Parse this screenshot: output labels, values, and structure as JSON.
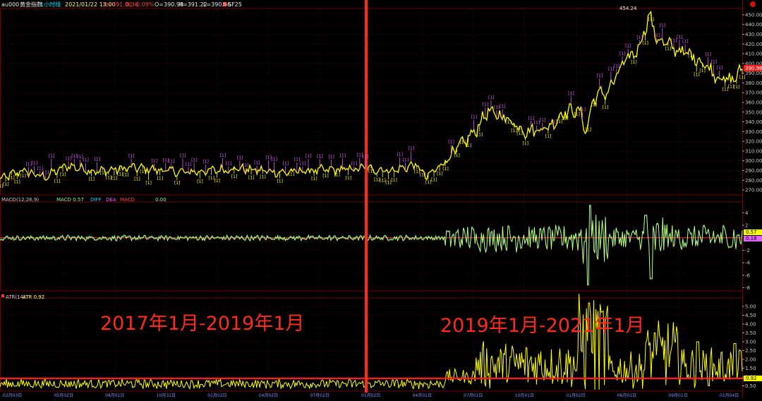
{
  "header": {
    "symbol": "au000",
    "name": "黄金指数",
    "period": "1小时线",
    "datetime": "2021/01/22 13:00",
    "open": "O=391.00",
    "change": "0.36",
    "change_pct": "0.09%",
    "close": "O=390.98",
    "high": "H=391.22",
    "low": "L=390.66",
    "indicator": "SF25"
  },
  "macd_header": {
    "label": "MACD(12,26,9)",
    "items": [
      "MACD 0.57",
      "DIFF",
      "DEA",
      "MACD",
      "0.00"
    ]
  },
  "atr_header": {
    "label": "ATR(14)",
    "value": "ATR 0.92"
  },
  "annotations": {
    "left_period": "2017年1月-2019年1月",
    "right_period": "2019年1月-2021年1月"
  },
  "peak_label": "454.24",
  "axis_tags": {
    "price": "390.98",
    "macd_a": "0.57",
    "macd_b": "0.18",
    "atr": "0.92"
  },
  "x_ticks": [
    "02月03日",
    "05月02日",
    "08月01日",
    "10月31日",
    "01月02日",
    "04月02日",
    "07月02日",
    "01月02日",
    "04月01日",
    "07月01日",
    "10月01日",
    "01月02日",
    "06月01日",
    "09月01日",
    "01月04日"
  ],
  "colors": {
    "background": "#000000",
    "grid": "#7a0000",
    "price_line": "#ffff00",
    "markers": "#e060ff",
    "macd_line": "#7dff9d",
    "atr_line": "#ffff00",
    "divider": "#ff2a1a",
    "axis_text": "#c8c8c8",
    "annotation": "#ff2a1a"
  },
  "chart_data": [
    {
      "type": "line",
      "panel": "price",
      "ylim": [
        265,
        455
      ],
      "y_ticks": [
        270,
        280,
        290,
        300,
        310,
        320,
        330,
        340,
        350,
        360,
        370,
        380,
        390,
        400,
        410,
        420,
        430,
        440,
        450
      ],
      "x_knots": [
        0,
        0.03,
        0.06,
        0.09,
        0.13,
        0.18,
        0.25,
        0.32,
        0.38,
        0.42,
        0.46,
        0.49,
        0.53,
        0.56,
        0.575,
        0.6,
        0.64,
        0.655,
        0.68,
        0.71,
        0.74,
        0.76,
        0.78,
        0.79,
        0.8,
        0.82,
        0.84,
        0.86,
        0.875,
        0.885,
        0.91,
        0.94,
        0.97,
        0.985,
        1.0
      ],
      "y_knots": [
        281,
        290,
        283,
        295,
        289,
        293,
        288,
        292,
        288,
        290,
        291,
        292,
        290,
        296,
        283,
        300,
        330,
        350,
        345,
        330,
        335,
        350,
        352,
        330,
        365,
        372,
        400,
        415,
        450,
        425,
        415,
        405,
        385,
        382,
        393
      ]
    },
    {
      "type": "line",
      "panel": "macd",
      "ylim": [
        -8.5,
        5.5
      ],
      "y_ticks": [
        4,
        2,
        -2,
        -4,
        -6,
        -8
      ],
      "segments": [
        [
          0,
          0.6,
          0.35
        ],
        [
          0.6,
          0.78,
          1.8
        ],
        [
          0.78,
          0.82,
          3.8
        ],
        [
          0.82,
          0.87,
          1.8
        ],
        [
          0.87,
          0.9,
          3.0
        ],
        [
          0.9,
          1.0,
          2.0
        ]
      ],
      "spikes": [
        [
          0.792,
          -7.5
        ],
        [
          0.795,
          5.2
        ],
        [
          0.877,
          -6.5
        ],
        [
          0.87,
          3.6
        ]
      ]
    },
    {
      "type": "line",
      "panel": "atr",
      "ylim": [
        0.2,
        5.4
      ],
      "y_ticks": [
        5.0,
        4.5,
        4.0,
        3.5,
        3.0,
        2.5,
        2.0,
        1.5,
        1.0,
        0.5
      ],
      "segments": [
        [
          0,
          0.6,
          0.55,
          0.25
        ],
        [
          0.6,
          0.64,
          0.9,
          0.4
        ],
        [
          0.64,
          0.78,
          1.4,
          1.2
        ],
        [
          0.78,
          0.82,
          2.3,
          2.6
        ],
        [
          0.82,
          0.87,
          1.2,
          0.9
        ],
        [
          0.87,
          0.92,
          1.9,
          1.7
        ],
        [
          0.92,
          1.0,
          1.3,
          1.0
        ]
      ],
      "spikes": [
        [
          0.794,
          5.2
        ],
        [
          0.882,
          3.5
        ],
        [
          0.94,
          3.0
        ],
        [
          0.99,
          2.9
        ]
      ],
      "red_level": 0.92
    }
  ]
}
